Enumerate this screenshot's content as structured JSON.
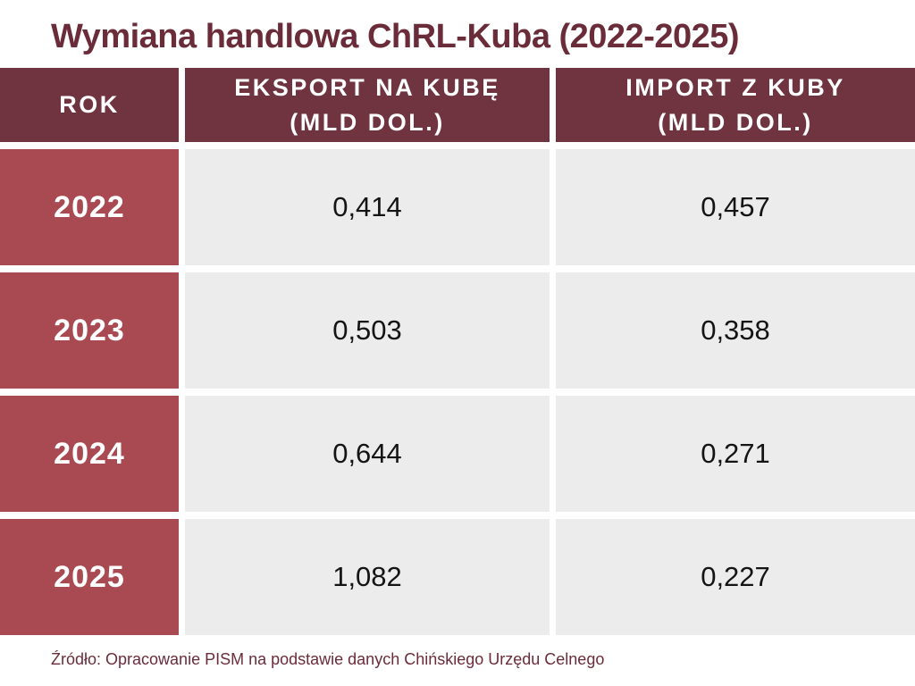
{
  "page": {
    "title": "Wymiana handlowa ChRL-Kuba (2022-2025)",
    "source_note": "Źródło: Opracowanie PISM na podstawie danych Chińskiego Urzędu Celnego"
  },
  "colors": {
    "header_bg": "#703441",
    "header_text": "#FFFFFF",
    "year_bg": "#A94A52",
    "year_text": "#FFFFFF",
    "cell_bg": "#ECECEC",
    "value_text": "#141414",
    "title_text": "#6B2C3A",
    "source_text": "#6B2C3A",
    "gap_color": "#FFFFFF"
  },
  "table": {
    "columns": [
      {
        "line1": "ROK",
        "line2": ""
      },
      {
        "line1": "EKSPORT NA KUBĘ",
        "line2": "(MLD DOL.)"
      },
      {
        "line1": "IMPORT Z KUBY",
        "line2": "(MLD DOL.)"
      }
    ],
    "rows": [
      {
        "year": "2022",
        "eksport": "0,414",
        "import": "0,457"
      },
      {
        "year": "2023",
        "eksport": "0,503",
        "import": "0,358"
      },
      {
        "year": "2024",
        "eksport": "0,644",
        "import": "0,271"
      },
      {
        "year": "2025",
        "eksport": "1,082",
        "import": "0,227"
      }
    ]
  },
  "chart_data": {
    "type": "table",
    "title": "Wymiana handlowa ChRL-Kuba (2022-2025)",
    "columns": [
      "ROK",
      "EKSPORT NA KUBĘ (MLD DOL.)",
      "IMPORT Z KUBY (MLD DOL.)"
    ],
    "rows": [
      [
        "2022",
        0.414,
        0.457
      ],
      [
        "2023",
        0.503,
        0.358
      ],
      [
        "2024",
        0.644,
        0.271
      ],
      [
        "2025",
        1.082,
        0.227
      ]
    ],
    "units": "mld dol. (billions USD), decimal comma notation",
    "source": "Źródło: Opracowanie PISM na podstawie danych Chińskiego Urzędu Celnego"
  }
}
